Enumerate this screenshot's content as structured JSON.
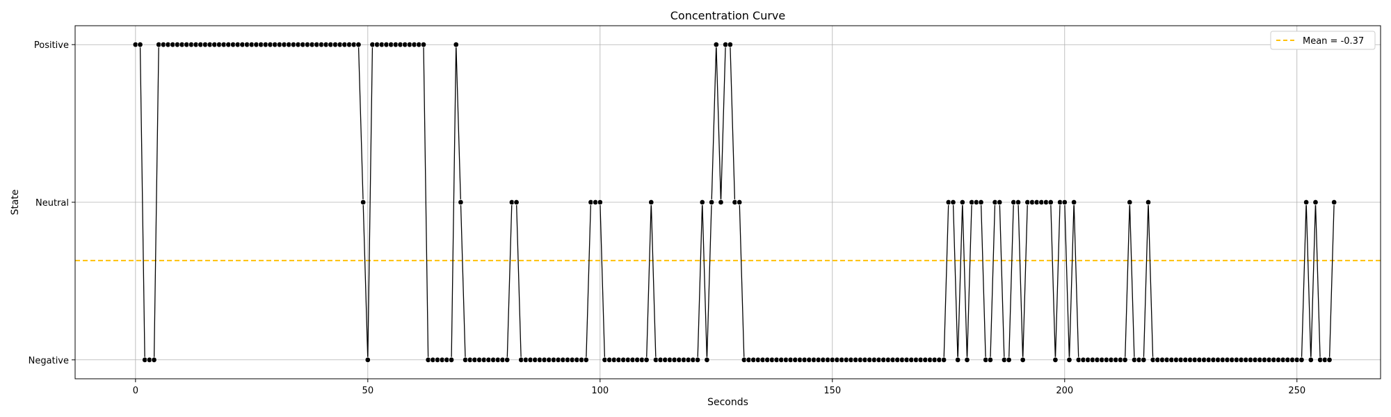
{
  "chart_data": {
    "type": "line",
    "title": "Concentration Curve",
    "xlabel": "Seconds",
    "ylabel": "State",
    "xlim": [
      -13,
      268
    ],
    "ylim": [
      -1.12,
      1.12
    ],
    "x_ticks": [
      0,
      50,
      100,
      150,
      200,
      250
    ],
    "y_ticks": [
      {
        "value": -1,
        "label": "Negative"
      },
      {
        "value": 0,
        "label": "Neutral"
      },
      {
        "value": 1,
        "label": "Positive"
      }
    ],
    "grid": true,
    "legend_position": "top-right",
    "series": [
      {
        "line_color": "#000000",
        "marker": "circle",
        "x_start": 0,
        "x_step": 1,
        "values": [
          1,
          1,
          -1,
          -1,
          -1,
          1,
          1,
          1,
          1,
          1,
          1,
          1,
          1,
          1,
          1,
          1,
          1,
          1,
          1,
          1,
          1,
          1,
          1,
          1,
          1,
          1,
          1,
          1,
          1,
          1,
          1,
          1,
          1,
          1,
          1,
          1,
          1,
          1,
          1,
          1,
          1,
          1,
          1,
          1,
          1,
          1,
          1,
          1,
          1,
          0,
          -1,
          1,
          1,
          1,
          1,
          1,
          1,
          1,
          1,
          1,
          1,
          1,
          1,
          -1,
          -1,
          -1,
          -1,
          -1,
          -1,
          1,
          0,
          -1,
          -1,
          -1,
          -1,
          -1,
          -1,
          -1,
          -1,
          -1,
          -1,
          0,
          0,
          -1,
          -1,
          -1,
          -1,
          -1,
          -1,
          -1,
          -1,
          -1,
          -1,
          -1,
          -1,
          -1,
          -1,
          -1,
          0,
          0,
          0,
          -1,
          -1,
          -1,
          -1,
          -1,
          -1,
          -1,
          -1,
          -1,
          -1,
          0,
          -1,
          -1,
          -1,
          -1,
          -1,
          -1,
          -1,
          -1,
          -1,
          -1,
          0,
          -1,
          0,
          1,
          0,
          1,
          1,
          0,
          0,
          -1,
          -1,
          -1,
          -1,
          -1,
          -1,
          -1,
          -1,
          -1,
          -1,
          -1,
          -1,
          -1,
          -1,
          -1,
          -1,
          -1,
          -1,
          -1,
          -1,
          -1,
          -1,
          -1,
          -1,
          -1,
          -1,
          -1,
          -1,
          -1,
          -1,
          -1,
          -1,
          -1,
          -1,
          -1,
          -1,
          -1,
          -1,
          -1,
          -1,
          -1,
          -1,
          -1,
          -1,
          0,
          0,
          -1,
          0,
          -1,
          0,
          0,
          0,
          -1,
          -1,
          0,
          0,
          -1,
          -1,
          0,
          0,
          -1,
          0,
          0,
          0,
          0,
          0,
          0,
          -1,
          0,
          0,
          -1,
          0,
          -1,
          -1,
          -1,
          -1,
          -1,
          -1,
          -1,
          -1,
          -1,
          -1,
          -1,
          0,
          -1,
          -1,
          -1,
          0,
          -1,
          -1,
          -1,
          -1,
          -1,
          -1,
          -1,
          -1,
          -1,
          -1,
          -1,
          -1,
          -1,
          -1,
          -1,
          -1,
          -1,
          -1,
          -1,
          -1,
          -1,
          -1,
          -1,
          -1,
          -1,
          -1,
          -1,
          -1,
          -1,
          -1,
          -1,
          -1,
          -1,
          0,
          -1,
          0,
          -1,
          -1,
          -1,
          0
        ]
      },
      {
        "name": "Mean = -0.37",
        "type": "hline",
        "y": -0.37,
        "color": "#ffc107",
        "style": "dashed"
      }
    ]
  }
}
